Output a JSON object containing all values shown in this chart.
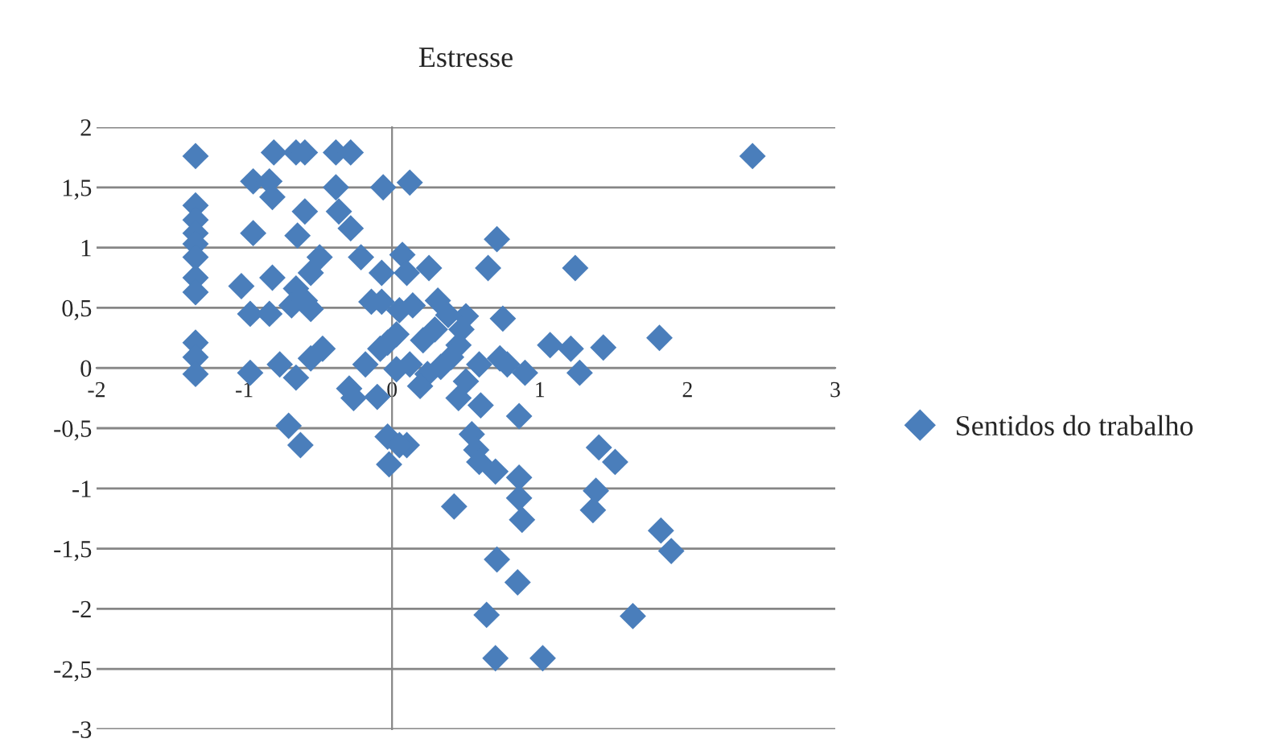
{
  "chart_data": {
    "type": "scatter",
    "ylabel": "Estresse",
    "xlim": [
      -2,
      3
    ],
    "xticks": [
      -2,
      -1,
      0,
      1,
      2,
      3
    ],
    "ylim": [
      -3,
      2
    ],
    "yticks": [
      {
        "value": -3,
        "label": "-3"
      },
      {
        "value": -2.5,
        "label": "-2,5"
      },
      {
        "value": -2,
        "label": "-2"
      },
      {
        "value": -1.5,
        "label": "-1,5"
      },
      {
        "value": -1,
        "label": "-1"
      },
      {
        "value": -0.5,
        "label": "-0,5"
      },
      {
        "value": 0,
        "label": "0"
      },
      {
        "value": 0.5,
        "label": "0,5"
      },
      {
        "value": 1,
        "label": "1"
      },
      {
        "value": 1.5,
        "label": "1,5"
      },
      {
        "value": 2,
        "label": "2"
      }
    ],
    "grid": "y",
    "legend": "right",
    "marker": "diamond",
    "series": [
      {
        "name": "Sentidos do trabalho",
        "color": "#4a7ebb",
        "x": [
          -1.33,
          -1.33,
          -1.33,
          -1.33,
          -1.33,
          -1.33,
          -1.33,
          -1.33,
          -1.33,
          -1.33,
          -1.33,
          -0.8,
          -0.65,
          -0.59,
          -0.38,
          -0.28,
          2.44,
          -0.94,
          -0.83,
          -0.81,
          -0.59,
          -0.36,
          -0.28,
          -0.94,
          -0.64,
          -1.02,
          -0.81,
          -0.65,
          -0.55,
          -0.49,
          -0.96,
          -0.83,
          -0.68,
          -0.59,
          -0.55,
          -0.21,
          -0.07,
          -0.14,
          -0.96,
          -0.76,
          -0.65,
          -0.55,
          -0.47,
          -0.29,
          -0.18,
          -0.08,
          0.03,
          -0.38,
          -0.06,
          0.12,
          0.71,
          0.07,
          0.65,
          1.24,
          0.25,
          0.1,
          0.31,
          -0.07,
          0.05,
          0.14,
          0.75,
          0.5,
          0.38,
          0.47,
          1.07,
          1.21,
          1.43,
          1.81,
          1.27,
          0.21,
          -0.03,
          0.45,
          0.73,
          0.9,
          0.59,
          0.78,
          0.24,
          0.12,
          0.03,
          0.4,
          0.5,
          0.45,
          0.6,
          0.86,
          -0.03,
          0.1,
          -0.02,
          0.54,
          0.57,
          0.59,
          0.7,
          0.86,
          0.42,
          0.86,
          0.88,
          1.4,
          1.51,
          1.38,
          1.36,
          1.82,
          1.89,
          0.71,
          0.85,
          0.64,
          1.63,
          0.7,
          1.02,
          -0.7,
          -0.62,
          -0.26,
          -0.1,
          0.05,
          0.29,
          0.19,
          0.33
        ],
        "values": [
          1.76,
          1.35,
          1.23,
          1.12,
          1.03,
          0.92,
          0.75,
          0.63,
          0.21,
          0.09,
          -0.05,
          1.79,
          1.79,
          1.79,
          1.79,
          1.79,
          1.76,
          1.55,
          1.55,
          1.42,
          1.3,
          1.3,
          1.16,
          1.12,
          1.1,
          0.68,
          0.75,
          0.66,
          0.79,
          0.92,
          0.45,
          0.45,
          0.52,
          0.56,
          0.49,
          0.92,
          0.79,
          0.55,
          -0.04,
          0.03,
          -0.08,
          0.08,
          0.16,
          -0.17,
          0.03,
          0.16,
          0.28,
          1.5,
          1.5,
          1.54,
          1.07,
          0.94,
          0.83,
          0.83,
          0.83,
          0.79,
          0.56,
          0.55,
          0.48,
          0.52,
          0.41,
          0.43,
          0.44,
          0.32,
          0.19,
          0.16,
          0.17,
          0.25,
          -0.04,
          0.23,
          0.21,
          0.19,
          0.08,
          -0.04,
          0.03,
          0.03,
          -0.05,
          0.03,
          -0.01,
          0.09,
          -0.11,
          -0.25,
          -0.31,
          -0.4,
          -0.57,
          -0.64,
          -0.8,
          -0.55,
          -0.68,
          -0.78,
          -0.86,
          -0.91,
          -1.15,
          -1.08,
          -1.26,
          -0.66,
          -0.78,
          -1.02,
          -1.18,
          -1.35,
          -1.52,
          -1.59,
          -1.78,
          -2.05,
          -2.06,
          -2.41,
          -2.41,
          -0.48,
          -0.64,
          -0.25,
          -0.24,
          -0.64,
          0.32,
          -0.15,
          0.01
        ]
      }
    ]
  }
}
